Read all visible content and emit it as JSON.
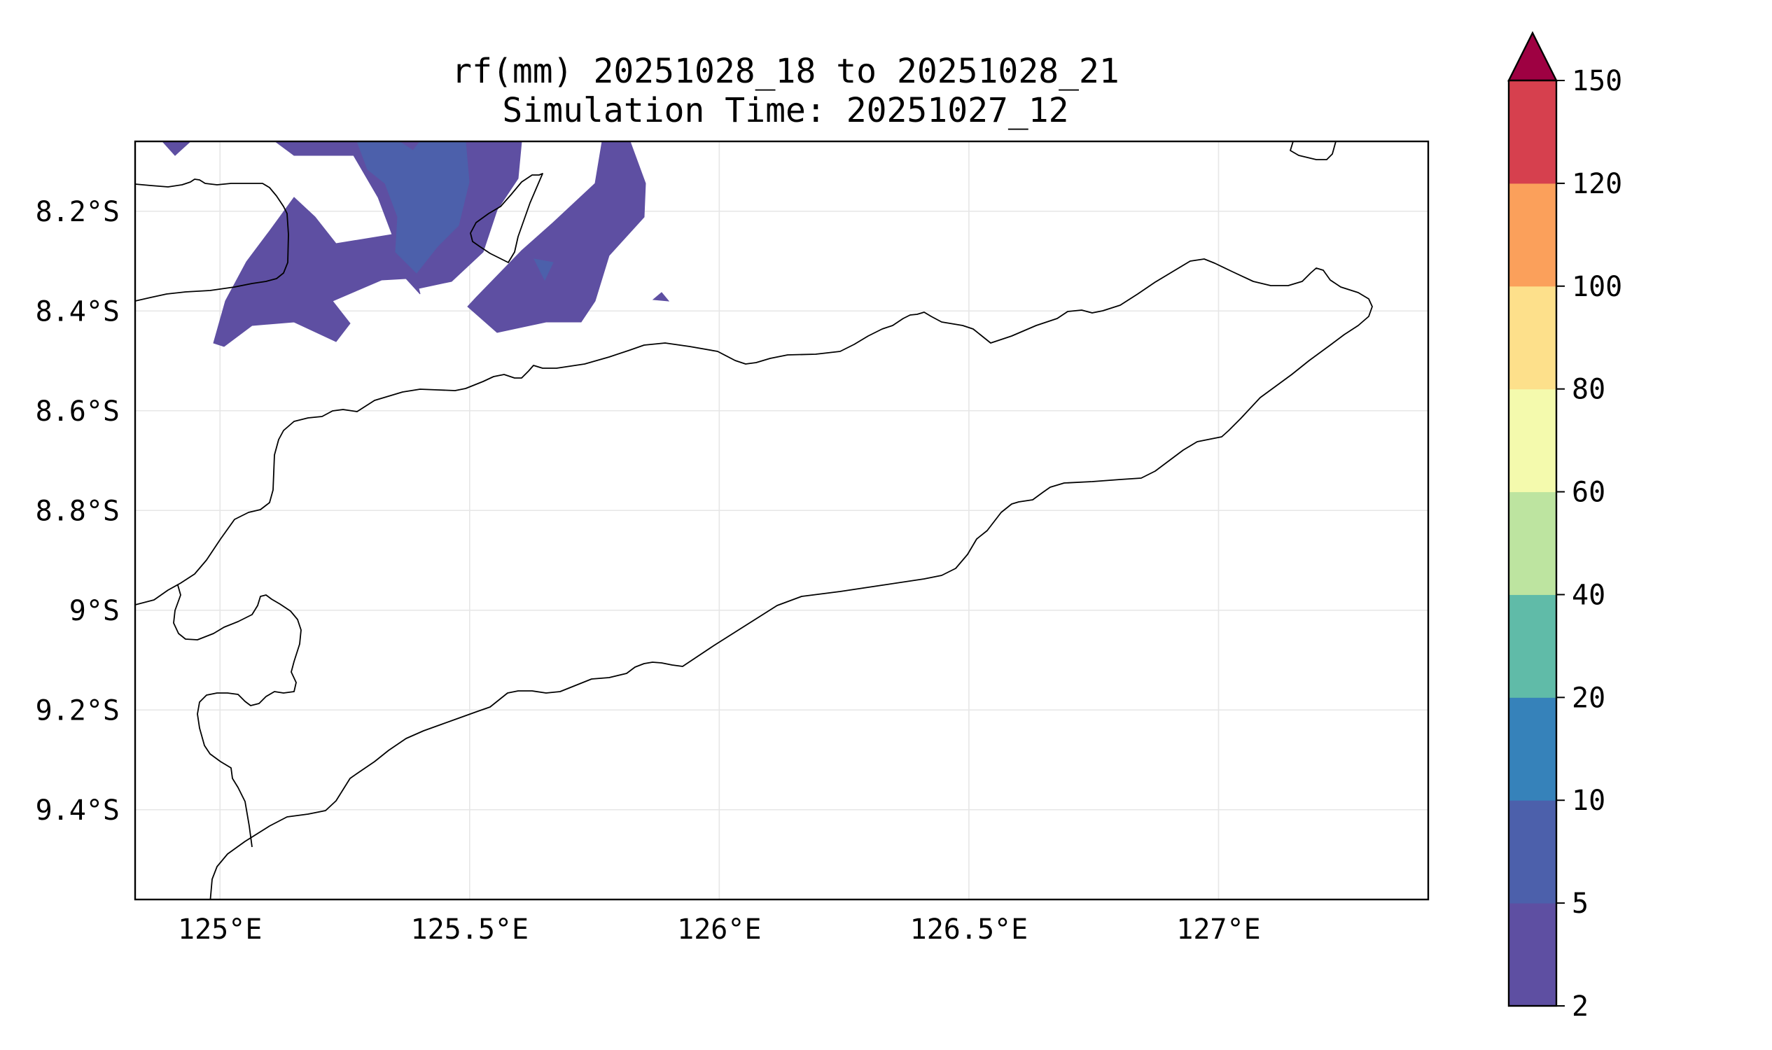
{
  "title_line1": "rf(mm) 20251028_18 to 20251028_21",
  "title_line2": "Simulation Time: 20251027_12",
  "map": {
    "lon_range": [
      124.83,
      127.42
    ],
    "lat_range": [
      -9.58,
      -8.06
    ],
    "lon_ticks": [
      {
        "value": 125.0,
        "label": "125°E"
      },
      {
        "value": 125.5,
        "label": "125.5°E"
      },
      {
        "value": 126.0,
        "label": "126°E"
      },
      {
        "value": 126.5,
        "label": "126.5°E"
      },
      {
        "value": 127.0,
        "label": "127°E"
      }
    ],
    "lat_ticks": [
      {
        "value": -8.2,
        "label": "8.2°S"
      },
      {
        "value": -8.4,
        "label": "8.4°S"
      },
      {
        "value": -8.6,
        "label": "8.6°S"
      },
      {
        "value": -8.8,
        "label": "8.8°S"
      },
      {
        "value": -9.0,
        "label": "9°S"
      },
      {
        "value": -9.2,
        "label": "9.2°S"
      },
      {
        "value": -9.4,
        "label": "9.4°S"
      }
    ],
    "gridlines": true
  },
  "colorbar": {
    "levels": [
      "2",
      "5",
      "10",
      "20",
      "40",
      "60",
      "80",
      "100",
      "120",
      "150"
    ],
    "colors": [
      "#5e4fa2",
      "#4c60ab",
      "#3682ba",
      "#60bba8",
      "#bde4a0",
      "#f4faad",
      "#fde08b",
      "#fba05b",
      "#d6404e"
    ],
    "extend_color": "#9e0142",
    "extend": "max"
  },
  "chart_data": {
    "type": "filled-contour map",
    "variable": "rf(mm)",
    "title": "rf(mm) 20251028_18 to 20251028_21",
    "subtitle": "Simulation Time: 20251027_12",
    "xlim": [
      124.83,
      127.42
    ],
    "ylim": [
      -9.58,
      -8.06
    ],
    "filled_regions": [
      {
        "range_mm": "2-5",
        "color": "#5e4fa2",
        "area": "northwest, around 124.9–125.9°E, 8.07–8.50°S"
      },
      {
        "range_mm": "5-10",
        "color": "#4c60ab",
        "area": "patches near 125.3–125.5°E, 8.07–8.33°S and 125.65°E, 8.33°S"
      }
    ]
  }
}
